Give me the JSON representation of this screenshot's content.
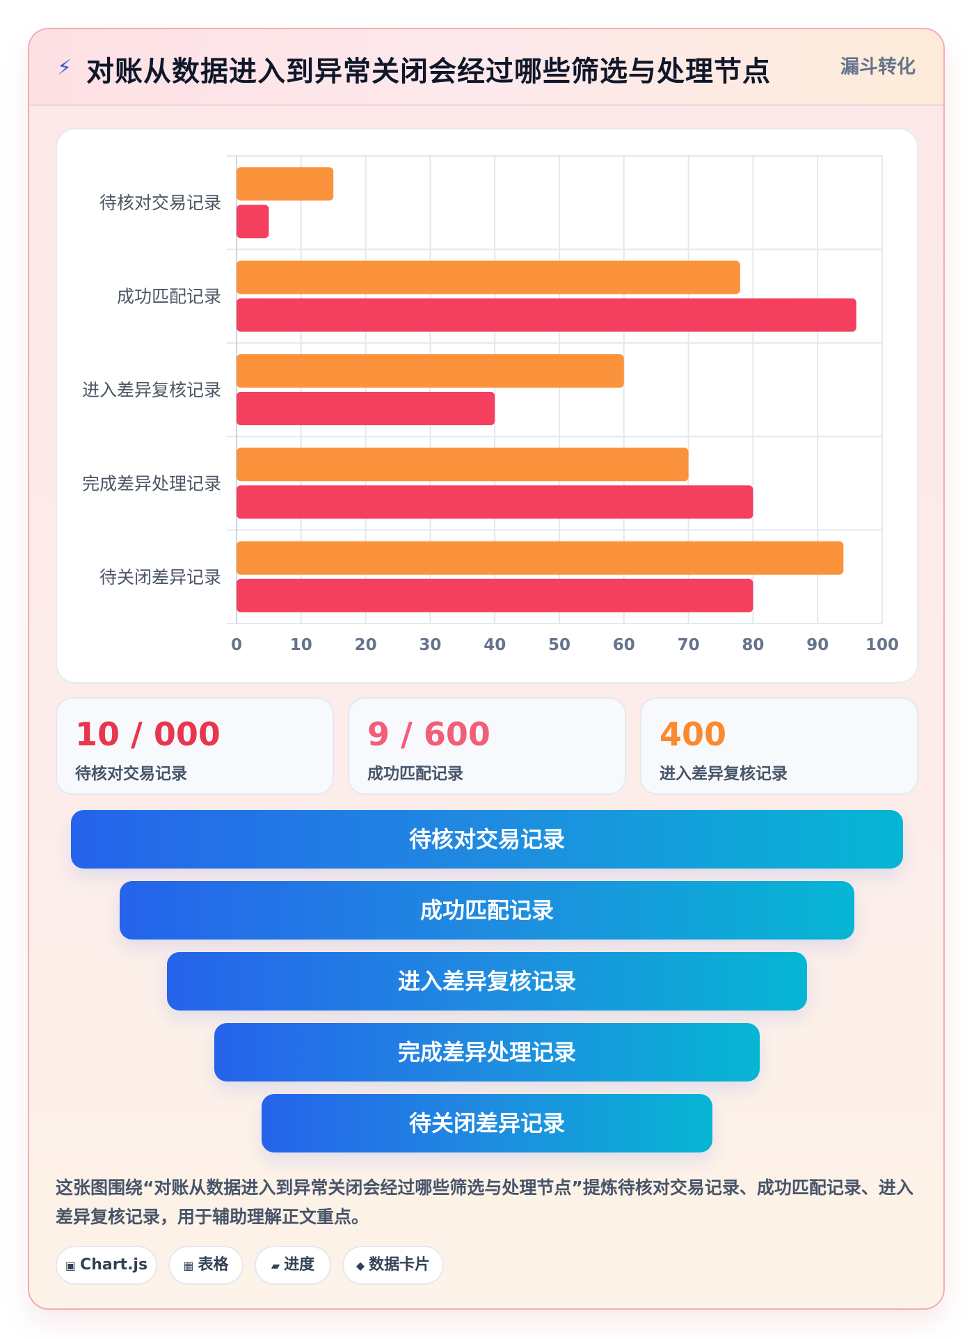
{
  "header": {
    "icon": "lightning-icon",
    "title": "对账从数据进入到异常关闭会经过哪些筛选与处理节点",
    "tag": "漏斗转化"
  },
  "chart_data": {
    "type": "bar",
    "orientation": "horizontal",
    "categories": [
      "待核对交易记录",
      "成功匹配记录",
      "进入差异复核记录",
      "完成差异处理记录",
      "待关闭差异记录"
    ],
    "series": [
      {
        "color": "#fb923c",
        "values": [
          15,
          78,
          60,
          70,
          94
        ]
      },
      {
        "color": "#f43f5e",
        "values": [
          5,
          96,
          40,
          80,
          80
        ]
      }
    ],
    "xlim": [
      0,
      100
    ],
    "x_ticks": [
      0,
      10,
      20,
      30,
      40,
      50,
      60,
      70,
      80,
      90,
      100
    ],
    "grid": true,
    "legend": "none"
  },
  "stats": [
    {
      "value": "10 / 000",
      "label": "待核对交易记录",
      "color": "#e8364f"
    },
    {
      "value": "9 / 600",
      "label": "成功匹配记录",
      "color": "#f25e76"
    },
    {
      "value": "400",
      "label": "进入差异复核记录",
      "color": "#fb8a2e"
    }
  ],
  "funnel": [
    {
      "label": "待核对交易记录"
    },
    {
      "label": "成功匹配记录"
    },
    {
      "label": "进入差异复核记录"
    },
    {
      "label": "完成差异处理记录"
    },
    {
      "label": "待关闭差异记录"
    }
  ],
  "description": "这张图围绕“对账从数据进入到异常关闭会经过哪些筛选与处理节点”提炼待核对交易记录、成功匹配记录、进入差异复核记录，用于辅助理解正文重点。",
  "chips": [
    {
      "icon": "▣",
      "icon_name": "chart-icon",
      "label": "Chart.js"
    },
    {
      "icon": "▦",
      "icon_name": "table-icon",
      "label": "表格"
    },
    {
      "icon": "▰",
      "icon_name": "progress-icon",
      "label": "进度"
    },
    {
      "icon": "◆",
      "icon_name": "card-icon",
      "label": "数据卡片"
    }
  ]
}
